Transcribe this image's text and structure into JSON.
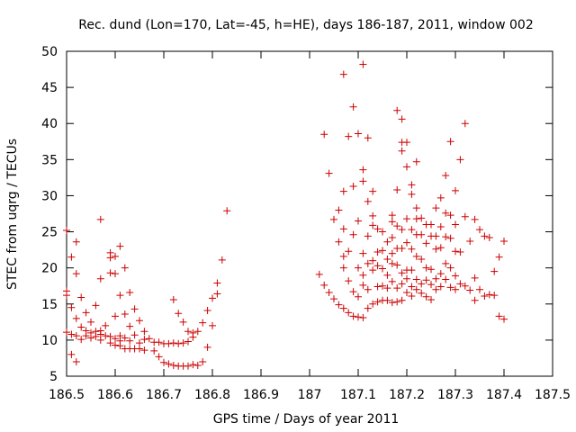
{
  "chart_data": {
    "type": "scatter",
    "title": "Rec. dund (Lon=170, Lat=-45, h=HE), days 186-187, 2011, window 002",
    "xlabel": "GPS time / Days of year 2011",
    "ylabel": "STEC from uqrg / TECUs",
    "xlim": [
      186.5,
      187.5
    ],
    "ylim": [
      5,
      50
    ],
    "xticks": [
      "186.5",
      "186.6",
      "186.7",
      "186.8",
      "186.9",
      "187",
      "187.1",
      "187.2",
      "187.3",
      "187.4",
      "187.5"
    ],
    "yticks": [
      "5",
      "10",
      "15",
      "20",
      "25",
      "30",
      "35",
      "40",
      "45",
      "50"
    ],
    "grid": false,
    "legend": "none",
    "marker": "plus",
    "color": "#cc0000",
    "series": [
      {
        "points": [
          [
            186.5,
            16.8
          ],
          [
            186.5,
            16.2
          ],
          [
            186.5,
            25.2
          ],
          [
            186.5,
            11.1
          ],
          [
            186.51,
            21.5
          ],
          [
            186.51,
            14.5
          ],
          [
            186.51,
            10.8
          ],
          [
            186.51,
            8.0
          ],
          [
            186.52,
            23.6
          ],
          [
            186.52,
            19.2
          ],
          [
            186.52,
            13.0
          ],
          [
            186.52,
            10.6
          ],
          [
            186.52,
            7.0
          ],
          [
            186.53,
            15.9
          ],
          [
            186.53,
            11.8
          ],
          [
            186.53,
            10.1
          ],
          [
            186.54,
            13.8
          ],
          [
            186.54,
            11.3
          ],
          [
            186.54,
            10.6
          ],
          [
            186.55,
            12.5
          ],
          [
            186.55,
            11.0
          ],
          [
            186.55,
            10.3
          ],
          [
            186.56,
            14.8
          ],
          [
            186.56,
            11.2
          ],
          [
            186.56,
            10.5
          ],
          [
            186.57,
            26.7
          ],
          [
            186.57,
            18.5
          ],
          [
            186.57,
            11.3
          ],
          [
            186.57,
            10.8
          ],
          [
            186.57,
            10.0
          ],
          [
            186.58,
            12.0
          ],
          [
            186.58,
            10.6
          ],
          [
            186.59,
            22.1
          ],
          [
            186.59,
            21.4
          ],
          [
            186.59,
            19.3
          ],
          [
            186.59,
            10.5
          ],
          [
            186.59,
            9.6
          ],
          [
            186.6,
            21.6
          ],
          [
            186.6,
            19.2
          ],
          [
            186.6,
            13.3
          ],
          [
            186.6,
            10.2
          ],
          [
            186.6,
            9.3
          ],
          [
            186.61,
            23.0
          ],
          [
            186.61,
            16.2
          ],
          [
            186.61,
            10.6
          ],
          [
            186.61,
            9.9
          ],
          [
            186.61,
            9.2
          ],
          [
            186.62,
            20.0
          ],
          [
            186.62,
            13.6
          ],
          [
            186.62,
            10.3
          ],
          [
            186.62,
            8.8
          ],
          [
            186.63,
            16.6
          ],
          [
            186.63,
            11.9
          ],
          [
            186.63,
            9.9
          ],
          [
            186.63,
            8.8
          ],
          [
            186.64,
            14.3
          ],
          [
            186.64,
            10.7
          ],
          [
            186.64,
            8.8
          ],
          [
            186.65,
            12.7
          ],
          [
            186.65,
            9.6
          ],
          [
            186.65,
            8.8
          ],
          [
            186.66,
            11.2
          ],
          [
            186.66,
            10.1
          ],
          [
            186.66,
            8.6
          ],
          [
            186.67,
            10.2
          ],
          [
            186.68,
            9.7
          ],
          [
            186.68,
            8.5
          ],
          [
            186.69,
            9.7
          ],
          [
            186.69,
            7.7
          ],
          [
            186.7,
            9.5
          ],
          [
            186.7,
            6.9
          ],
          [
            186.71,
            9.5
          ],
          [
            186.71,
            6.7
          ],
          [
            186.72,
            15.6
          ],
          [
            186.72,
            9.6
          ],
          [
            186.72,
            6.5
          ],
          [
            186.73,
            13.7
          ],
          [
            186.73,
            9.5
          ],
          [
            186.73,
            6.4
          ],
          [
            186.74,
            12.5
          ],
          [
            186.74,
            9.6
          ],
          [
            186.74,
            6.4
          ],
          [
            186.75,
            11.2
          ],
          [
            186.75,
            9.8
          ],
          [
            186.75,
            6.4
          ],
          [
            186.76,
            11.0
          ],
          [
            186.76,
            10.4
          ],
          [
            186.76,
            6.6
          ],
          [
            186.77,
            11.2
          ],
          [
            186.77,
            6.5
          ],
          [
            186.78,
            12.4
          ],
          [
            186.78,
            7.0
          ],
          [
            186.79,
            14.1
          ],
          [
            186.79,
            9.0
          ],
          [
            186.8,
            15.8
          ],
          [
            186.8,
            12.0
          ],
          [
            186.81,
            17.9
          ],
          [
            186.81,
            16.4
          ],
          [
            186.82,
            21.1
          ],
          [
            186.83,
            27.9
          ],
          [
            187.02,
            19.1
          ],
          [
            187.03,
            38.5
          ],
          [
            187.03,
            17.6
          ],
          [
            187.04,
            33.1
          ],
          [
            187.04,
            16.6
          ],
          [
            187.05,
            26.7
          ],
          [
            187.05,
            15.7
          ],
          [
            187.06,
            28.0
          ],
          [
            187.06,
            23.6
          ],
          [
            187.06,
            14.9
          ],
          [
            187.07,
            46.8
          ],
          [
            187.07,
            30.6
          ],
          [
            187.07,
            25.4
          ],
          [
            187.07,
            21.6
          ],
          [
            187.07,
            20.0
          ],
          [
            187.07,
            14.4
          ],
          [
            187.08,
            38.2
          ],
          [
            187.08,
            22.3
          ],
          [
            187.08,
            18.2
          ],
          [
            187.08,
            13.8
          ],
          [
            187.09,
            42.3
          ],
          [
            187.09,
            31.3
          ],
          [
            187.09,
            24.6
          ],
          [
            187.09,
            16.7
          ],
          [
            187.09,
            13.3
          ],
          [
            187.1,
            38.6
          ],
          [
            187.1,
            26.5
          ],
          [
            187.1,
            20.0
          ],
          [
            187.1,
            16.0
          ],
          [
            187.1,
            13.2
          ],
          [
            187.11,
            33.6
          ],
          [
            187.11,
            32.0
          ],
          [
            187.11,
            48.2
          ],
          [
            187.11,
            22.0
          ],
          [
            187.11,
            19.0
          ],
          [
            187.11,
            17.6
          ],
          [
            187.11,
            13.1
          ],
          [
            187.12,
            38.0
          ],
          [
            187.12,
            29.2
          ],
          [
            187.12,
            24.4
          ],
          [
            187.12,
            20.6
          ],
          [
            187.12,
            17.0
          ],
          [
            187.12,
            14.4
          ],
          [
            187.13,
            30.6
          ],
          [
            187.13,
            27.2
          ],
          [
            187.13,
            25.9
          ],
          [
            187.13,
            21.0
          ],
          [
            187.13,
            19.7
          ],
          [
            187.13,
            15.0
          ],
          [
            187.14,
            25.4
          ],
          [
            187.14,
            22.2
          ],
          [
            187.14,
            20.3
          ],
          [
            187.14,
            17.4
          ],
          [
            187.14,
            15.3
          ],
          [
            187.15,
            25.0
          ],
          [
            187.15,
            22.4
          ],
          [
            187.15,
            19.9
          ],
          [
            187.15,
            17.5
          ],
          [
            187.15,
            15.5
          ],
          [
            187.16,
            23.6
          ],
          [
            187.16,
            21.2
          ],
          [
            187.16,
            19.0
          ],
          [
            187.16,
            17.2
          ],
          [
            187.16,
            15.5
          ],
          [
            187.17,
            27.3
          ],
          [
            187.17,
            26.4
          ],
          [
            187.17,
            24.2
          ],
          [
            187.17,
            22.0
          ],
          [
            187.17,
            20.6
          ],
          [
            187.17,
            18.1
          ],
          [
            187.17,
            15.2
          ],
          [
            187.18,
            41.8
          ],
          [
            187.18,
            30.8
          ],
          [
            187.18,
            25.8
          ],
          [
            187.18,
            22.7
          ],
          [
            187.18,
            20.4
          ],
          [
            187.18,
            17.2
          ],
          [
            187.18,
            15.3
          ],
          [
            187.19,
            40.6
          ],
          [
            187.19,
            37.4
          ],
          [
            187.19,
            36.2
          ],
          [
            187.19,
            25.3
          ],
          [
            187.19,
            22.7
          ],
          [
            187.19,
            19.3
          ],
          [
            187.19,
            17.8
          ],
          [
            187.19,
            15.5
          ],
          [
            187.2,
            37.4
          ],
          [
            187.2,
            34.0
          ],
          [
            187.2,
            26.8
          ],
          [
            187.2,
            23.5
          ],
          [
            187.2,
            19.7
          ],
          [
            187.2,
            18.5
          ],
          [
            187.2,
            16.6
          ],
          [
            187.21,
            31.5
          ],
          [
            187.21,
            30.2
          ],
          [
            187.21,
            25.3
          ],
          [
            187.21,
            22.6
          ],
          [
            187.21,
            19.7
          ],
          [
            187.21,
            17.4
          ],
          [
            187.21,
            16.1
          ],
          [
            187.22,
            34.7
          ],
          [
            187.22,
            28.3
          ],
          [
            187.22,
            26.8
          ],
          [
            187.22,
            24.6
          ],
          [
            187.22,
            21.6
          ],
          [
            187.22,
            18.4
          ],
          [
            187.22,
            17.0
          ],
          [
            187.23,
            26.9
          ],
          [
            187.23,
            24.6
          ],
          [
            187.23,
            21.2
          ],
          [
            187.23,
            17.8
          ],
          [
            187.23,
            16.5
          ],
          [
            187.24,
            26.0
          ],
          [
            187.24,
            23.4
          ],
          [
            187.24,
            20.0
          ],
          [
            187.24,
            18.3
          ],
          [
            187.24,
            16.0
          ],
          [
            187.25,
            26.0
          ],
          [
            187.25,
            24.4
          ],
          [
            187.25,
            19.8
          ],
          [
            187.25,
            17.7
          ],
          [
            187.25,
            15.6
          ],
          [
            187.26,
            28.3
          ],
          [
            187.26,
            24.4
          ],
          [
            187.26,
            22.6
          ],
          [
            187.26,
            18.5
          ],
          [
            187.26,
            17.0
          ],
          [
            187.27,
            29.7
          ],
          [
            187.27,
            25.7
          ],
          [
            187.27,
            22.8
          ],
          [
            187.27,
            19.2
          ],
          [
            187.27,
            17.4
          ],
          [
            187.28,
            32.8
          ],
          [
            187.28,
            27.6
          ],
          [
            187.28,
            24.3
          ],
          [
            187.28,
            20.6
          ],
          [
            187.28,
            18.4
          ],
          [
            187.29,
            37.5
          ],
          [
            187.29,
            27.3
          ],
          [
            187.29,
            24.1
          ],
          [
            187.29,
            20.0
          ],
          [
            187.29,
            17.3
          ],
          [
            187.3,
            30.7
          ],
          [
            187.3,
            26.0
          ],
          [
            187.3,
            22.3
          ],
          [
            187.3,
            18.9
          ],
          [
            187.3,
            17.0
          ],
          [
            187.31,
            35.0
          ],
          [
            187.31,
            22.2
          ],
          [
            187.31,
            17.8
          ],
          [
            187.32,
            40.0
          ],
          [
            187.32,
            27.1
          ],
          [
            187.32,
            17.5
          ],
          [
            187.33,
            23.7
          ],
          [
            187.33,
            16.9
          ],
          [
            187.34,
            26.7
          ],
          [
            187.34,
            18.6
          ],
          [
            187.34,
            15.5
          ],
          [
            187.35,
            25.3
          ],
          [
            187.35,
            17.0
          ],
          [
            187.36,
            24.4
          ],
          [
            187.36,
            16.1
          ],
          [
            187.37,
            24.2
          ],
          [
            187.37,
            16.3
          ],
          [
            187.38,
            19.5
          ],
          [
            187.38,
            16.2
          ],
          [
            187.39,
            21.5
          ],
          [
            187.39,
            13.3
          ],
          [
            187.4,
            23.7
          ],
          [
            187.4,
            12.9
          ]
        ]
      }
    ]
  }
}
